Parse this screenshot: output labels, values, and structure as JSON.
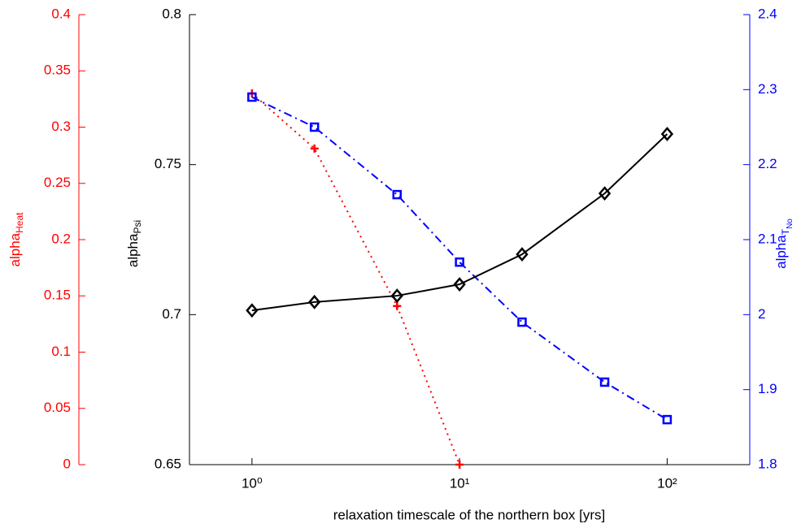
{
  "chart_data": {
    "type": "line",
    "xlabel": "relaxation timescale of the northern box [yrs]",
    "xlog": true,
    "xlim": [
      0.5,
      250
    ],
    "xticks": [
      {
        "value": 1,
        "label": "10⁰"
      },
      {
        "value": 10,
        "label": "10¹"
      },
      {
        "value": 100,
        "label": "10²"
      }
    ],
    "ylabel": "alpha",
    "ylabel_sub": "Psi",
    "ylim": [
      0.65,
      0.8
    ],
    "yticks": [
      0.65,
      0.7,
      0.75,
      0.8
    ],
    "y2label": "alpha",
    "y2label_sub": "T",
    "y2label_subsub": "No",
    "y2lim": [
      1.8,
      2.4
    ],
    "y2ticks": [
      1.8,
      1.9,
      2,
      2.1,
      2.2,
      2.3,
      2.4
    ],
    "y3label": "alpha",
    "y3label_sub": "Heat",
    "y3lim": [
      0,
      0.4
    ],
    "y3ticks": [
      0,
      0.05,
      0.1,
      0.15,
      0.2,
      0.25,
      0.3,
      0.35,
      0.4
    ],
    "series": [
      {
        "axis": "y3",
        "color": "#ff0000",
        "line": "dotted",
        "marker": "plus",
        "x": [
          1,
          2,
          5,
          10
        ],
        "values": [
          0.33,
          0.281,
          0.141,
          0
        ]
      },
      {
        "axis": "y2",
        "color": "#0000ff",
        "line": "dashdot",
        "marker": "square",
        "x": [
          1,
          2,
          5,
          10,
          20,
          50,
          100
        ],
        "values": [
          2.29,
          2.25,
          2.16,
          2.07,
          1.99,
          1.91,
          1.86
        ]
      },
      {
        "axis": "y",
        "color": "#000000",
        "line": "solid",
        "marker": "diamond",
        "x": [
          1,
          2,
          5,
          10,
          20,
          50,
          100
        ],
        "values": [
          0.7014,
          0.7042,
          0.7063,
          0.7101,
          0.7201,
          0.7404,
          0.7602
        ]
      }
    ]
  }
}
